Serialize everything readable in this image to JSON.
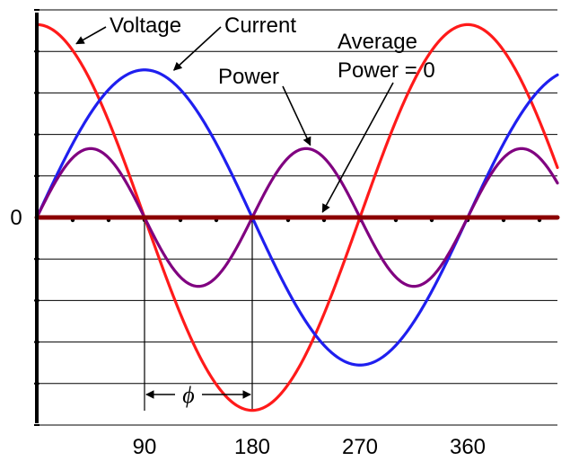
{
  "chart_data": {
    "type": "line",
    "title": "",
    "xlabel": "",
    "ylabel": "",
    "x_unit": "degrees",
    "xlim": [
      0,
      435
    ],
    "ylim": [
      -1.0,
      1.0
    ],
    "x_ticks": [
      {
        "value": 90,
        "label": "90"
      },
      {
        "value": 180,
        "label": "180"
      },
      {
        "value": 270,
        "label": "270"
      },
      {
        "value": 360,
        "label": "360"
      }
    ],
    "y_ticks": [
      {
        "value": 0,
        "label": "0"
      }
    ],
    "grid": "horizontal",
    "legend": "none",
    "series": [
      {
        "name": "Voltage",
        "color": "#ff1a1a",
        "formula": "0.98*cos(x)",
        "x": [
          0,
          45,
          90,
          135,
          180,
          225,
          270,
          315,
          360,
          405,
          435
        ],
        "y": [
          0.98,
          0.69,
          0.0,
          -0.69,
          -0.98,
          -0.69,
          0.0,
          0.69,
          0.98,
          0.69,
          0.25
        ]
      },
      {
        "name": "Current",
        "color": "#1f1fef",
        "formula": "0.75*sin(x)",
        "x": [
          0,
          45,
          90,
          135,
          180,
          225,
          270,
          315,
          360,
          405,
          435
        ],
        "y": [
          0.0,
          0.53,
          0.75,
          0.53,
          0.0,
          -0.53,
          -0.75,
          -0.53,
          0.0,
          0.53,
          0.72
        ]
      },
      {
        "name": "Power",
        "color": "#800080",
        "formula": "0.35*sin(2x)",
        "x": [
          0,
          45,
          90,
          135,
          180,
          225,
          270,
          315,
          360,
          405,
          435
        ],
        "y": [
          0.0,
          0.35,
          0.0,
          -0.35,
          0.0,
          0.35,
          0.0,
          -0.35,
          0.0,
          0.35,
          0.18
        ]
      },
      {
        "name": "Average Power = 0",
        "color": "#8b0000",
        "x": [
          0,
          435
        ],
        "y": [
          0,
          0
        ]
      }
    ],
    "annotations": [
      {
        "text": "Voltage",
        "target_series": "Voltage",
        "point": [
          30,
          0.91
        ]
      },
      {
        "text": "Current",
        "target_series": "Current",
        "point": [
          110,
          0.73
        ]
      },
      {
        "text": "Power",
        "target_series": "Power",
        "point": [
          230,
          0.34
        ]
      },
      {
        "text_lines": [
          "Average",
          "Power = 0"
        ],
        "target_series": "Average Power = 0",
        "point": [
          235,
          0.0
        ]
      }
    ],
    "phase_marker": {
      "label": "ϕ",
      "from": 90,
      "to": 180
    }
  }
}
